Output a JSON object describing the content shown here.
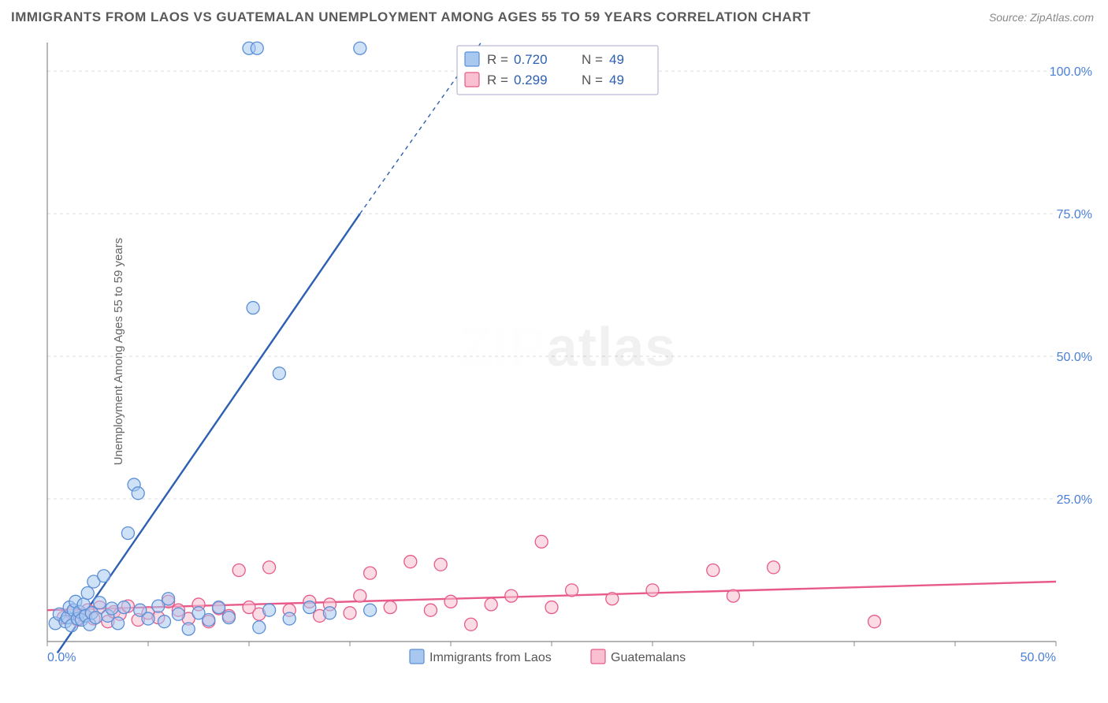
{
  "title": "IMMIGRANTS FROM LAOS VS GUATEMALAN UNEMPLOYMENT AMONG AGES 55 TO 59 YEARS CORRELATION CHART",
  "source": "Source: ZipAtlas.com",
  "ylabel": "Unemployment Among Ages 55 to 59 years",
  "watermark_a": "ZIP",
  "watermark_b": "atlas",
  "chart": {
    "type": "scatter-with-trend",
    "xlim": [
      0,
      50
    ],
    "ylim": [
      0,
      105
    ],
    "xticks": [
      0,
      50
    ],
    "xtick_labels": [
      "0.0%",
      "50.0%"
    ],
    "yticks": [
      25,
      50,
      75,
      100
    ],
    "ytick_labels": [
      "25.0%",
      "50.0%",
      "75.0%",
      "100.0%"
    ],
    "xtick_minor_step": 5,
    "grid_color": "#dddddd",
    "axis_color": "#888888",
    "background_color": "#ffffff",
    "marker_radius": 8,
    "series": [
      {
        "name": "Immigrants from Laos",
        "color_fill": "#a8c8f0",
        "color_stroke": "#5b8fd6",
        "trend_color": "#2d5fb3",
        "R": "0.720",
        "N": "49",
        "trend": {
          "x1": 0.5,
          "y1": -2,
          "x2": 15.5,
          "y2": 75,
          "x3_dash": 21.5,
          "y3_dash": 105
        },
        "points": [
          [
            0.4,
            3.2
          ],
          [
            0.6,
            4.8
          ],
          [
            0.9,
            3.5
          ],
          [
            1.0,
            4.2
          ],
          [
            1.1,
            6.0
          ],
          [
            1.2,
            2.8
          ],
          [
            1.3,
            5.5
          ],
          [
            1.4,
            7.0
          ],
          [
            1.5,
            4.0
          ],
          [
            1.6,
            5.2
          ],
          [
            1.7,
            3.8
          ],
          [
            1.8,
            6.5
          ],
          [
            1.9,
            4.5
          ],
          [
            2.0,
            8.5
          ],
          [
            2.1,
            3.0
          ],
          [
            2.2,
            5.0
          ],
          [
            2.3,
            10.5
          ],
          [
            2.4,
            4.2
          ],
          [
            2.6,
            6.8
          ],
          [
            2.8,
            11.5
          ],
          [
            3.0,
            4.5
          ],
          [
            3.2,
            5.8
          ],
          [
            3.5,
            3.2
          ],
          [
            3.8,
            6.0
          ],
          [
            4.0,
            19.0
          ],
          [
            4.3,
            27.5
          ],
          [
            4.5,
            26.0
          ],
          [
            4.6,
            5.5
          ],
          [
            5.0,
            4.0
          ],
          [
            5.5,
            6.2
          ],
          [
            5.8,
            3.5
          ],
          [
            6.0,
            7.5
          ],
          [
            6.5,
            4.8
          ],
          [
            7.0,
            2.2
          ],
          [
            7.5,
            5.0
          ],
          [
            8.0,
            3.8
          ],
          [
            8.5,
            6.0
          ],
          [
            9.0,
            4.2
          ],
          [
            10.0,
            104.0
          ],
          [
            10.2,
            58.5
          ],
          [
            10.4,
            104.0
          ],
          [
            10.5,
            2.5
          ],
          [
            11.0,
            5.5
          ],
          [
            11.5,
            47.0
          ],
          [
            12.0,
            4.0
          ],
          [
            13.0,
            6.0
          ],
          [
            14.0,
            5.0
          ],
          [
            15.5,
            104.0
          ],
          [
            16.0,
            5.5
          ]
        ]
      },
      {
        "name": "Guatemalans",
        "color_fill": "#f8c0d0",
        "color_stroke": "#e85a8a",
        "trend_color": "#e85a8a",
        "R": "0.299",
        "N": "49",
        "trend": {
          "x1": 0,
          "y1": 5.5,
          "x2": 50,
          "y2": 10.5
        },
        "points": [
          [
            0.8,
            4.2
          ],
          [
            1.2,
            5.0
          ],
          [
            1.5,
            3.8
          ],
          [
            1.8,
            4.5
          ],
          [
            2.0,
            5.5
          ],
          [
            2.3,
            4.0
          ],
          [
            2.6,
            6.0
          ],
          [
            3.0,
            3.5
          ],
          [
            3.3,
            5.2
          ],
          [
            3.6,
            4.8
          ],
          [
            4.0,
            6.2
          ],
          [
            4.5,
            3.8
          ],
          [
            5.0,
            5.0
          ],
          [
            5.5,
            4.2
          ],
          [
            6.0,
            7.0
          ],
          [
            6.5,
            5.5
          ],
          [
            7.0,
            4.0
          ],
          [
            7.5,
            6.5
          ],
          [
            8.0,
            3.5
          ],
          [
            8.5,
            5.8
          ],
          [
            9.0,
            4.5
          ],
          [
            9.5,
            12.5
          ],
          [
            10.0,
            6.0
          ],
          [
            10.5,
            4.8
          ],
          [
            11.0,
            13.0
          ],
          [
            12.0,
            5.5
          ],
          [
            13.0,
            7.0
          ],
          [
            13.5,
            4.5
          ],
          [
            14.0,
            6.5
          ],
          [
            15.0,
            5.0
          ],
          [
            15.5,
            8.0
          ],
          [
            16.0,
            12.0
          ],
          [
            17.0,
            6.0
          ],
          [
            18.0,
            14.0
          ],
          [
            19.0,
            5.5
          ],
          [
            19.5,
            13.5
          ],
          [
            20.0,
            7.0
          ],
          [
            21.0,
            3.0
          ],
          [
            22.0,
            6.5
          ],
          [
            23.0,
            8.0
          ],
          [
            24.5,
            17.5
          ],
          [
            25.0,
            6.0
          ],
          [
            26.0,
            9.0
          ],
          [
            28.0,
            7.5
          ],
          [
            30.0,
            9.0
          ],
          [
            33.0,
            12.5
          ],
          [
            34.0,
            8.0
          ],
          [
            36.0,
            13.0
          ],
          [
            41.0,
            3.5
          ]
        ]
      }
    ],
    "legend": {
      "items": [
        "Immigrants from Laos",
        "Guatemalans"
      ]
    },
    "stats_box": {
      "rows": [
        {
          "swatch": "blue",
          "R_label": "R =",
          "R": "0.720",
          "N_label": "N =",
          "N": "49"
        },
        {
          "swatch": "pink",
          "R_label": "R =",
          "R": "0.299",
          "N_label": "N =",
          "N": "49"
        }
      ]
    }
  }
}
